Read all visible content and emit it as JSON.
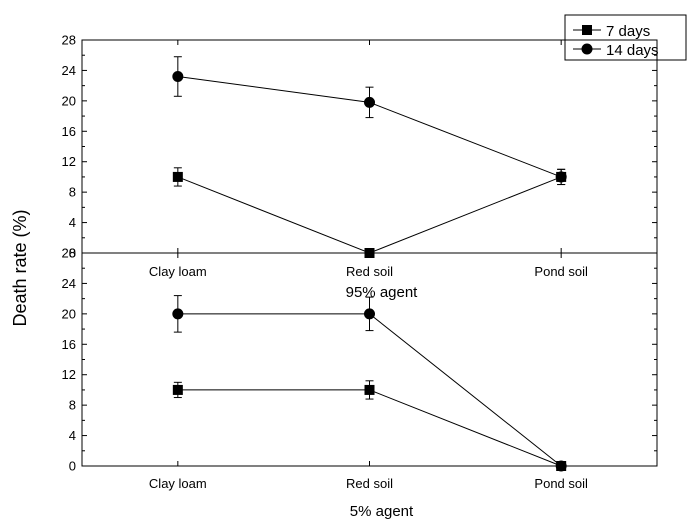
{
  "chart_data": {
    "type": "line",
    "ylabel": "Death rate (%)",
    "legend": {
      "placement": "top-right",
      "entries": [
        {
          "name": "7 days",
          "marker": "square"
        },
        {
          "name": "14 days",
          "marker": "circle"
        }
      ]
    },
    "panels": [
      {
        "title": "95% agent",
        "categories": [
          "Clay loam",
          "Red soil",
          "Pond soil"
        ],
        "ylim": [
          0,
          28
        ],
        "yticks": [
          "0",
          "4",
          "8",
          "12",
          "16",
          "20",
          "24",
          "28"
        ],
        "series": [
          {
            "name": "7 days",
            "marker": "square",
            "values": [
              10,
              0,
              10
            ],
            "errors": [
              1.2,
              0,
              1.0
            ]
          },
          {
            "name": "14 days",
            "marker": "circle",
            "values": [
              23.2,
              19.8,
              10
            ],
            "errors": [
              2.6,
              2.0,
              1.0
            ]
          }
        ]
      },
      {
        "title": "5% agent",
        "categories": [
          "Clay loam",
          "Red soil",
          "Pond soil"
        ],
        "ylim": [
          0,
          28
        ],
        "yticks": [
          "0",
          "4",
          "8",
          "12",
          "16",
          "20",
          "24",
          "28"
        ],
        "series": [
          {
            "name": "7 days",
            "marker": "square",
            "values": [
              10,
              10,
              0
            ],
            "errors": [
              1.0,
              1.2,
              0
            ]
          },
          {
            "name": "14 days",
            "marker": "circle",
            "values": [
              20,
              20,
              0
            ],
            "errors": [
              2.4,
              2.2,
              0
            ]
          }
        ]
      }
    ]
  }
}
